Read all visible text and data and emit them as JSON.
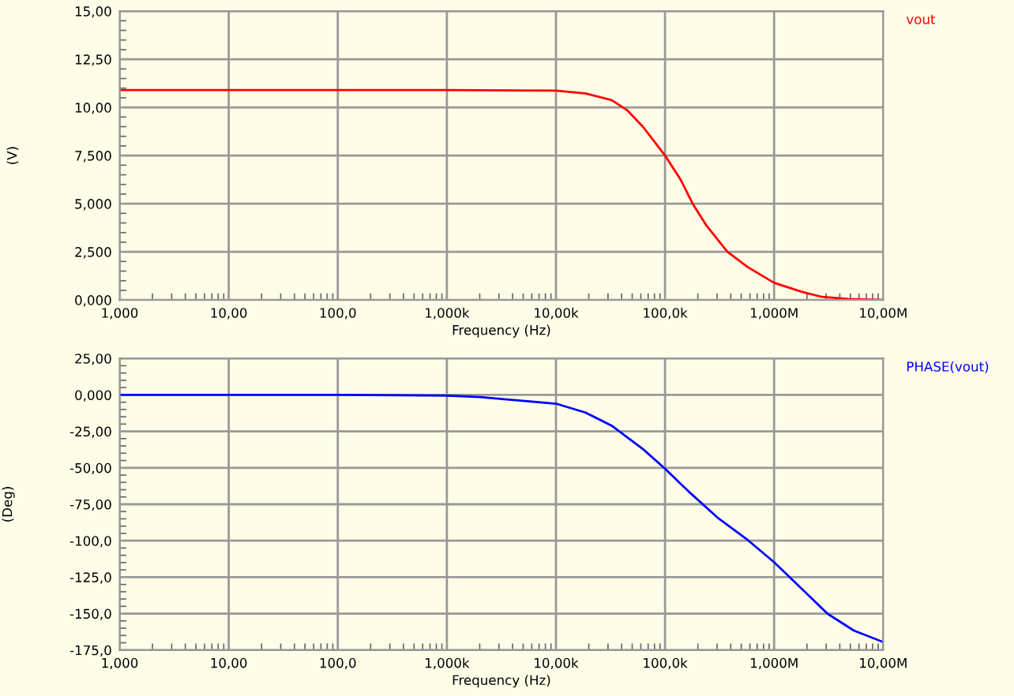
{
  "chart_data": [
    {
      "type": "line",
      "xlabel": "Frequency (Hz)",
      "ylabel": "(V)",
      "log": "x",
      "grid": true,
      "xlim": [
        1,
        10000000
      ],
      "xticks": [
        {
          "value": 1,
          "label": "1,000"
        },
        {
          "value": 10,
          "label": "10,00"
        },
        {
          "value": 100,
          "label": "100,0"
        },
        {
          "value": 1000,
          "label": "1,000k"
        },
        {
          "value": 10000,
          "label": "10,00k"
        },
        {
          "value": 100000,
          "label": "100,0k"
        },
        {
          "value": 1000000,
          "label": "1,000M"
        },
        {
          "value": 10000000,
          "label": "10,00M"
        }
      ],
      "ylim": [
        0,
        15
      ],
      "yticks": [
        {
          "value": 0,
          "label": "0,000"
        },
        {
          "value": 2.5,
          "label": "2,500"
        },
        {
          "value": 5,
          "label": "5,000"
        },
        {
          "value": 7.5,
          "label": "7,500"
        },
        {
          "value": 10,
          "label": "10,00"
        },
        {
          "value": 12.5,
          "label": "12,50"
        },
        {
          "value": 15,
          "label": "15,00"
        }
      ],
      "series": [
        {
          "name": "vout",
          "color": "#ff0000",
          "x": [
            1,
            10,
            100,
            1000,
            10000,
            18600,
            32400,
            44700,
            63100,
            100000,
            138000,
            182000,
            240000,
            372000,
            575000,
            1000000,
            1780000,
            2750000,
            4790000,
            10000000
          ],
          "values": [
            10.9,
            10.9,
            10.9,
            10.9,
            10.87,
            10.73,
            10.38,
            9.87,
            8.98,
            7.5,
            6.28,
            4.93,
            3.86,
            2.51,
            1.7,
            0.89,
            0.43,
            0.16,
            0.05,
            0.0
          ]
        }
      ]
    },
    {
      "type": "line",
      "xlabel": "Frequency (Hz)",
      "ylabel": "(Deg)",
      "log": "x",
      "grid": true,
      "xlim": [
        1,
        10000000
      ],
      "xticks": [
        {
          "value": 1,
          "label": "1,000"
        },
        {
          "value": 10,
          "label": "10,00"
        },
        {
          "value": 100,
          "label": "100,0"
        },
        {
          "value": 1000,
          "label": "1,000k"
        },
        {
          "value": 10000,
          "label": "10,00k"
        },
        {
          "value": 100000,
          "label": "100,0k"
        },
        {
          "value": 1000000,
          "label": "1,000M"
        },
        {
          "value": 10000000,
          "label": "10,00M"
        }
      ],
      "ylim": [
        -175,
        25
      ],
      "yticks": [
        {
          "value": -175,
          "label": "-175,0"
        },
        {
          "value": -150,
          "label": "-150,0"
        },
        {
          "value": -125,
          "label": "-125,0"
        },
        {
          "value": -100,
          "label": "-100,0"
        },
        {
          "value": -75,
          "label": "-75,00"
        },
        {
          "value": -50,
          "label": "-50,00"
        },
        {
          "value": -25,
          "label": "-25,00"
        },
        {
          "value": 0,
          "label": "0,000"
        },
        {
          "value": 25,
          "label": "25,00"
        }
      ],
      "series": [
        {
          "name": "PHASE(vout)",
          "color": "#0000ff",
          "x": [
            1,
            10,
            100,
            1000,
            2000,
            3500,
            10000,
            18600,
            32400,
            63100,
            100000,
            174000,
            302000,
            575000,
            1000000,
            1780000,
            3090000,
            5370000,
            10000000
          ],
          "values": [
            0,
            0,
            0,
            -0.5,
            -1.5,
            -3.1,
            -6.0,
            -12.1,
            -21.1,
            -37.3,
            -50.6,
            -67.9,
            -84.1,
            -99.6,
            -114.8,
            -132.8,
            -150.1,
            -161.6,
            -169.5
          ]
        }
      ]
    }
  ]
}
